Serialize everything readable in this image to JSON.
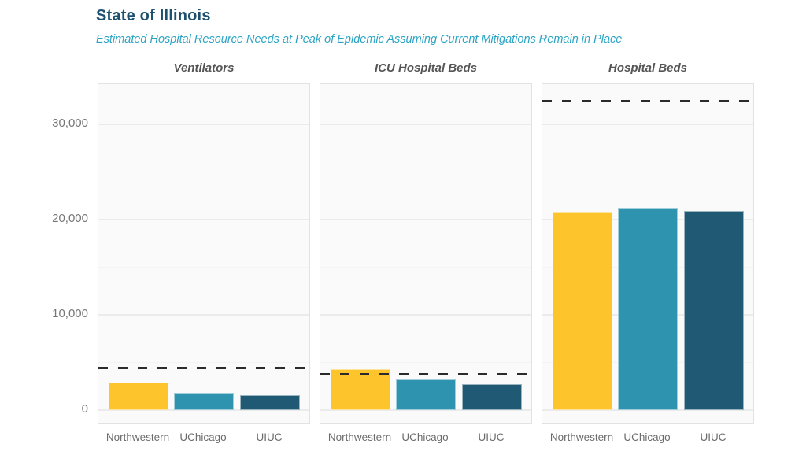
{
  "header": {
    "title": "State of Illinois",
    "subtitle": "Estimated Hospital Resource Needs at Peak of Epidemic Assuming Current Mitigations Remain in Place"
  },
  "chart_data": {
    "type": "bar",
    "title": "State of Illinois",
    "subtitle": "Estimated Hospital Resource Needs at Peak of Epidemic Assuming Current Mitigations Remain in Place",
    "categories": [
      "Northwestern",
      "UChicago",
      "UIUC"
    ],
    "bar_colors": [
      "#fdc42c",
      "#2d93ae",
      "#1f5973"
    ],
    "facets": [
      {
        "title": "Ventilators",
        "values": [
          2900,
          1800,
          1600
        ],
        "capacity_line": 4500
      },
      {
        "title": "ICU Hospital Beds",
        "values": [
          4300,
          3200,
          2700
        ],
        "capacity_line": 3800
      },
      {
        "title": "Hospital Beds",
        "values": [
          20800,
          21200,
          20900
        ],
        "capacity_line": 32500
      }
    ],
    "y_axis": {
      "ylim": [
        0,
        34200
      ],
      "major_ticks": [
        0,
        10000,
        20000,
        30000
      ],
      "major_tick_labels": [
        "0",
        "10,000",
        "20,000",
        "30,000"
      ],
      "minor_ticks": [
        5000,
        15000,
        25000
      ]
    },
    "grid": true,
    "legend": "none",
    "capacity_line_color": "#2b2b2b",
    "colors": {
      "title": "#1e506f",
      "subtitle": "#2ba4c4",
      "facet_title": "#555555",
      "axis_label": "#767676",
      "panel_background": "#fafafa",
      "panel_border": "#e2e2e2"
    }
  }
}
